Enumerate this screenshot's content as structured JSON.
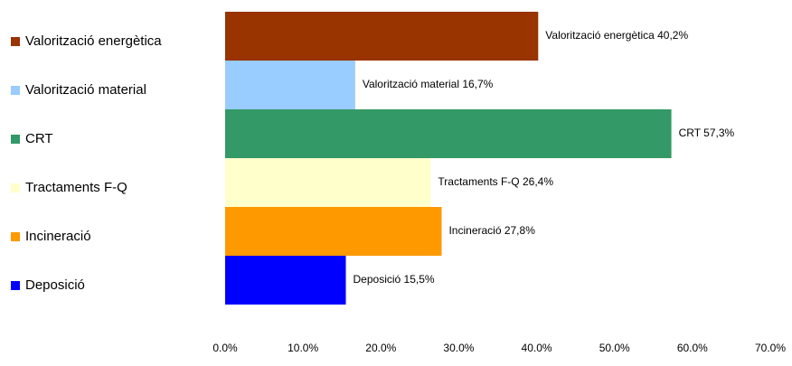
{
  "chart_data": {
    "type": "barh",
    "categories": [
      "Valorització energètica",
      "Valorització material",
      "CRT",
      "Tractaments F-Q",
      "Incineració",
      "Deposició"
    ],
    "values": [
      40.2,
      16.7,
      57.3,
      26.4,
      27.8,
      15.5
    ],
    "value_labels": [
      "Valorització energètica 40,2%",
      "Valorització material 16,7%",
      "CRT 57,3%",
      "Tractaments F-Q 26,4%",
      "Incineració 27,8%",
      "Deposició 15,5%"
    ],
    "colors": [
      "#993300",
      "#99ccff",
      "#339966",
      "#ffffcc",
      "#ff9900",
      "#0000ff"
    ],
    "xlim": [
      0,
      70
    ],
    "xticks": [
      {
        "value": 0,
        "label": "0.0%"
      },
      {
        "value": 10,
        "label": "10.0%"
      },
      {
        "value": 20,
        "label": "20.0%"
      },
      {
        "value": 30,
        "label": "30.0%"
      },
      {
        "value": 40,
        "label": "40.0%"
      },
      {
        "value": 50,
        "label": "50.0%"
      },
      {
        "value": 60,
        "label": "60.0%"
      },
      {
        "value": 70,
        "label": "70.0%"
      }
    ],
    "legend": "left"
  }
}
